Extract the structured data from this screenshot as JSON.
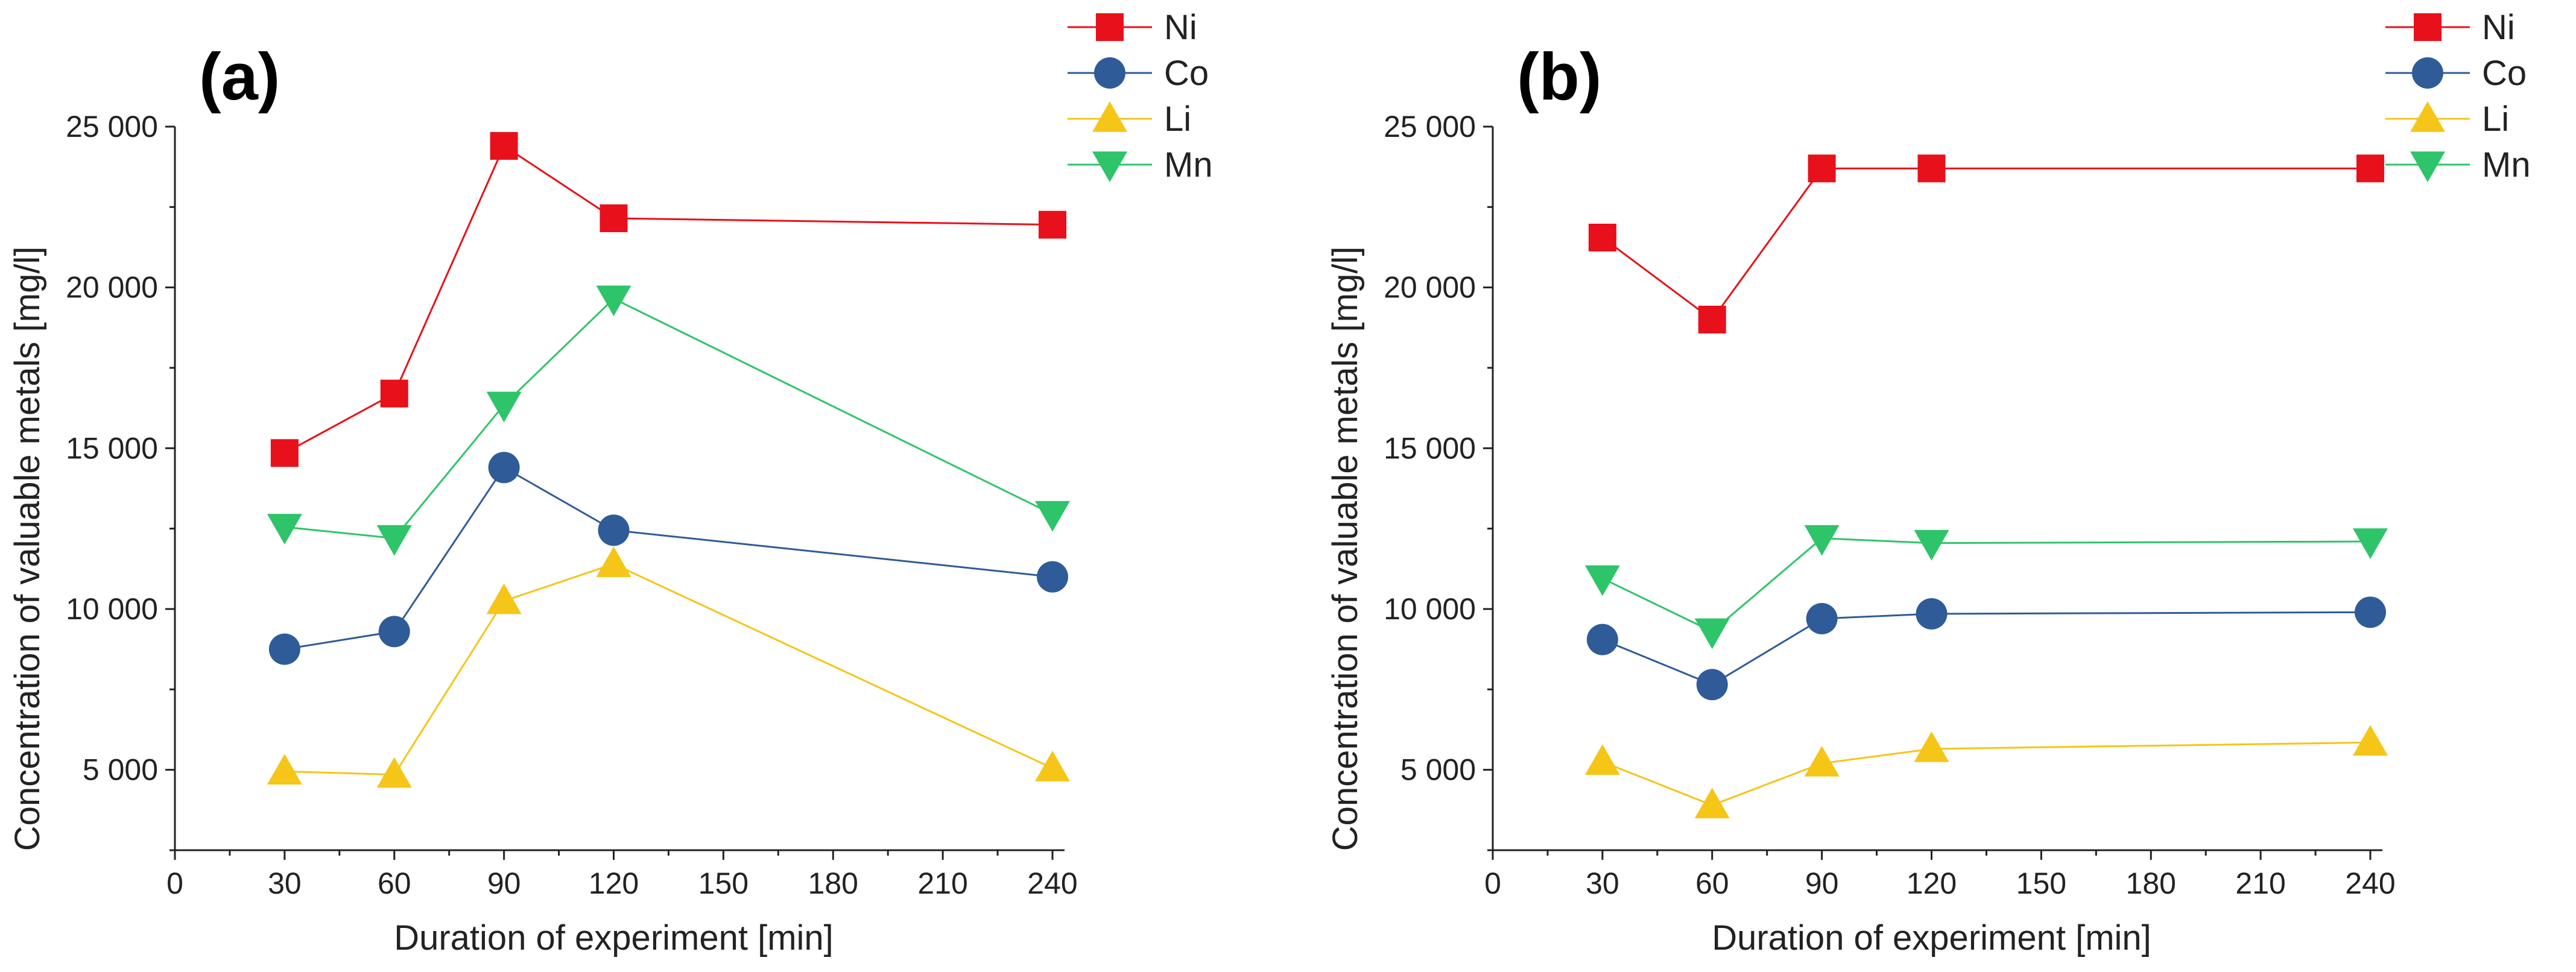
{
  "chart_data": [
    {
      "type": "line",
      "panel_label": "(a)",
      "xlabel": "Duration of experiment [min]",
      "ylabel": "Concentration of valuable metals [mg/l]",
      "xlim": [
        0,
        240
      ],
      "ylim": [
        2500,
        25000
      ],
      "xticks": [
        0,
        30,
        60,
        90,
        120,
        150,
        180,
        210,
        240
      ],
      "yticks": [
        5000,
        10000,
        15000,
        20000,
        25000
      ],
      "ytick_labels": [
        "5 000",
        "10 000",
        "15 000",
        "20 000",
        "25 000"
      ],
      "x": [
        30,
        60,
        90,
        120,
        240
      ],
      "legend_position": "top-right",
      "series": [
        {
          "name": "Ni",
          "marker": "square",
          "color": "#e8101a",
          "values": [
            14850,
            16700,
            24400,
            22150,
            21950
          ]
        },
        {
          "name": "Co",
          "marker": "circle",
          "color": "#2f5b98",
          "values": [
            8750,
            9300,
            14400,
            12450,
            11000
          ]
        },
        {
          "name": "Li",
          "marker": "triangle-up",
          "color": "#f5c518",
          "values": [
            4950,
            4850,
            10250,
            11400,
            5050
          ]
        },
        {
          "name": "Mn",
          "marker": "triangle-down",
          "color": "#2ec46a",
          "values": [
            12550,
            12200,
            16350,
            19650,
            12950
          ]
        }
      ]
    },
    {
      "type": "line",
      "panel_label": "(b)",
      "xlabel": "Duration of experiment [min]",
      "ylabel": "Concentration of valuable metals [mg/l]",
      "xlim": [
        0,
        240
      ],
      "ylim": [
        2500,
        25000
      ],
      "xticks": [
        0,
        30,
        60,
        90,
        120,
        150,
        180,
        210,
        240
      ],
      "yticks": [
        5000,
        10000,
        15000,
        20000,
        25000
      ],
      "ytick_labels": [
        "5 000",
        "10 000",
        "15 000",
        "20 000",
        "25 000"
      ],
      "x": [
        30,
        60,
        90,
        120,
        240
      ],
      "legend_position": "top-right",
      "series": [
        {
          "name": "Ni",
          "marker": "square",
          "color": "#e8101a",
          "values": [
            21550,
            19000,
            23700,
            23700,
            23700
          ]
        },
        {
          "name": "Co",
          "marker": "circle",
          "color": "#2f5b98",
          "values": [
            9050,
            7650,
            9700,
            9850,
            9900
          ]
        },
        {
          "name": "Li",
          "marker": "triangle-up",
          "color": "#f5c518",
          "values": [
            5250,
            3900,
            5200,
            5650,
            5850
          ]
        },
        {
          "name": "Mn",
          "marker": "triangle-down",
          "color": "#2ec46a",
          "values": [
            10950,
            9300,
            12200,
            12050,
            12100
          ]
        }
      ]
    }
  ]
}
